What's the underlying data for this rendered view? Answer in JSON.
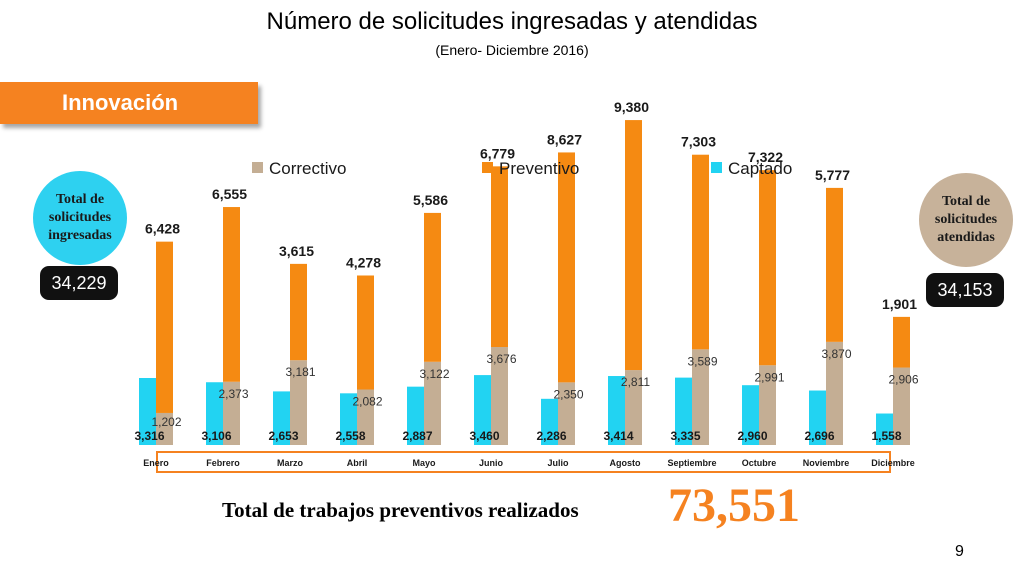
{
  "header": {
    "title": "Número de solicitudes ingresadas y atendidas",
    "subtitle": "(Enero- Diciembre 2016)"
  },
  "section": {
    "label": "Innovación"
  },
  "left_summary": {
    "label": "Total de solicitudes ingresadas",
    "value": "34,229"
  },
  "right_summary": {
    "label": "Total de solicitudes atendidas",
    "value": "34,153"
  },
  "footer": {
    "label": "Total de trabajos preventivos realizados",
    "value": "73,551",
    "page": "9"
  },
  "colors": {
    "correctivo": "#c4ae94",
    "preventivo": "#f58a12",
    "captado": "#22d3f2",
    "accent": "#f58220"
  },
  "chart_data": {
    "type": "bar",
    "categories": [
      "Enero",
      "Febrero",
      "Marzo",
      "Abril",
      "Mayo",
      "Junio",
      "Julio",
      "Agosto",
      "Septiembre",
      "Octubre",
      "Noviembre",
      "Diciembre"
    ],
    "legend": [
      "Correctivo",
      "Preventivo",
      "Captado"
    ],
    "legend_position": "top",
    "grid": false,
    "series": [
      {
        "name": "Captado",
        "values": [
          3316,
          3106,
          2653,
          2558,
          2887,
          3460,
          2286,
          3414,
          3335,
          2960,
          2696,
          1558
        ]
      },
      {
        "name": "Correctivo",
        "values": [
          1202,
          2373,
          3181,
          2082,
          3122,
          3676,
          2350,
          2811,
          3589,
          2991,
          3870,
          2906
        ],
        "stacked_with": "Preventivo"
      },
      {
        "name": "Preventivo",
        "values": [
          6428,
          6555,
          3615,
          4278,
          5586,
          6779,
          8627,
          9380,
          7303,
          7322,
          5777,
          1901
        ],
        "stacked_on": "Correctivo"
      }
    ]
  }
}
